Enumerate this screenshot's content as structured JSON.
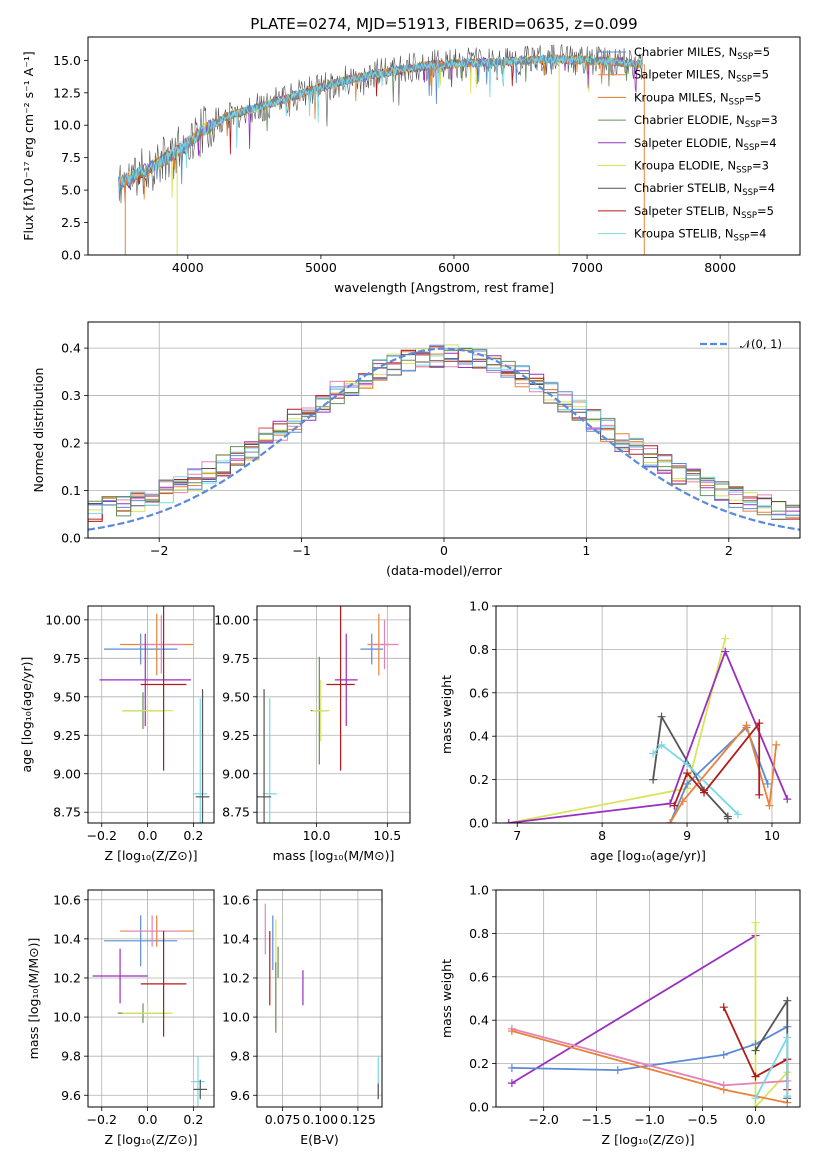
{
  "colors": {
    "chabrier_miles": "#5b8bd6",
    "salpeter_miles": "#e8833a",
    "kroupa_miles": "#d97a1e",
    "chabrier_elodie": "#6a8f5c",
    "salpeter_elodie": "#9a2fbf",
    "kroupa_elodie": "#d8e45a",
    "chabrier_stelib": "#555555",
    "salpeter_stelib": "#b31b1b",
    "kroupa_stelib": "#79d9e6",
    "pink": "#e683b7",
    "gauss": "#5b8bd6"
  },
  "chart_data": [
    {
      "id": "spectrum",
      "type": "line",
      "title": "PLATE=0274, MJD=51913, FIBERID=0635, z=0.099",
      "xlabel": "wavelength [Angstrom, rest frame]",
      "ylabel": "Flux [fλ10⁻¹⁷ erg cm⁻² s⁻¹ A⁻¹]",
      "xlim": [
        3250,
        8600
      ],
      "ylim": [
        0,
        16.8
      ],
      "xticks": [
        "4000",
        "5000",
        "6000",
        "7000",
        "8000"
      ],
      "yticks": [
        "0.0",
        "2.5",
        "5.0",
        "7.5",
        "10.0",
        "12.5",
        "15.0"
      ],
      "xtick_values": [
        4000,
        5000,
        6000,
        7000,
        8000
      ],
      "ytick_values": [
        0,
        2.5,
        5,
        7.5,
        10,
        12.5,
        15
      ],
      "continuum": {
        "x": [
          3500,
          3700,
          3900,
          4100,
          4300,
          4600,
          4900,
          5200,
          5500,
          5800,
          6100,
          6400,
          6700,
          7000,
          7200,
          7400
        ],
        "y": [
          5.6,
          6.6,
          7.8,
          9.5,
          10.7,
          11.6,
          12.6,
          13.5,
          14.1,
          14.6,
          14.8,
          14.9,
          15.1,
          15.0,
          14.9,
          14.7
        ]
      },
      "legend": [
        {
          "label": "Chabrier MILES, N",
          "sub": "SSP",
          "suffix": "=5",
          "color": "chabrier_miles"
        },
        {
          "label": "Salpeter MILES, N",
          "sub": "SSP",
          "suffix": "=5",
          "color": "salpeter_miles"
        },
        {
          "label": "Kroupa MILES, N",
          "sub": "SSP",
          "suffix": "=5",
          "color": "kroupa_miles"
        },
        {
          "label": "Chabrier ELODIE, N",
          "sub": "SSP",
          "suffix": "=3",
          "color": "chabrier_elodie"
        },
        {
          "label": "Salpeter ELODIE, N",
          "sub": "SSP",
          "suffix": "=4",
          "color": "salpeter_elodie"
        },
        {
          "label": "Kroupa ELODIE, N",
          "sub": "SSP",
          "suffix": "=3",
          "color": "kroupa_elodie"
        },
        {
          "label": "Chabrier STELIB, N",
          "sub": "SSP",
          "suffix": "=4",
          "color": "chabrier_stelib"
        },
        {
          "label": "Salpeter STELIB, N",
          "sub": "SSP",
          "suffix": "=5",
          "color": "salpeter_stelib"
        },
        {
          "label": "Kroupa STELIB, N",
          "sub": "SSP",
          "suffix": "=4",
          "color": "kroupa_stelib"
        }
      ]
    },
    {
      "id": "residuals",
      "type": "line",
      "xlabel": "(data-model)/error",
      "ylabel": "Normed distribution",
      "xlim": [
        -2.5,
        2.5
      ],
      "ylim": [
        0,
        0.455
      ],
      "xticks": [
        "−2",
        "−1",
        "0",
        "1",
        "2"
      ],
      "yticks": [
        "0.0",
        "0.1",
        "0.2",
        "0.3",
        "0.4"
      ],
      "xtick_values": [
        -2,
        -1,
        0,
        1,
        2
      ],
      "ytick_values": [
        0,
        0.1,
        0.2,
        0.3,
        0.4
      ],
      "legend_label": "𝒩(0, 1)",
      "gaussian": {
        "mu": 0,
        "sigma": 1
      }
    },
    {
      "id": "age-vs-Z",
      "type": "scatter",
      "xlabel": "Z [log₁₀(Z/Z⊙)]",
      "ylabel": "age  [log₁₀(age/yr)]",
      "xlim": [
        -0.26,
        0.29
      ],
      "ylim": [
        8.68,
        10.09
      ],
      "xticks": [
        "−0.2",
        "0.0",
        "0.2"
      ],
      "yticks": [
        "8.75",
        "9.00",
        "9.25",
        "9.50",
        "9.75",
        "10.00"
      ],
      "xtick_values": [
        -0.2,
        0.0,
        0.2
      ],
      "ytick_values": [
        8.75,
        9.0,
        9.25,
        9.5,
        9.75,
        10.0
      ],
      "points": [
        {
          "x": -0.03,
          "y": 9.81,
          "xerr": 0.16,
          "yerr": 0.1,
          "color": "chabrier_miles"
        },
        {
          "x": 0.04,
          "y": 9.84,
          "xerr": 0.16,
          "yerr": 0.2,
          "color": "salpeter_miles"
        },
        {
          "x": 0.06,
          "y": 9.84,
          "xerr": 0.1,
          "yerr": 0.19,
          "color": "pink"
        },
        {
          "x": -0.01,
          "y": 9.61,
          "xerr": 0.2,
          "yerr": 0.3,
          "color": "salpeter_elodie"
        },
        {
          "x": -0.02,
          "y": 9.41,
          "xerr": 0.09,
          "yerr": 0.12,
          "color": "chabrier_elodie"
        },
        {
          "x": 0.0,
          "y": 9.41,
          "xerr": 0.11,
          "yerr": 0.1,
          "color": "kroupa_elodie"
        },
        {
          "x": 0.07,
          "y": 9.58,
          "xerr": 0.1,
          "yerr": 0.56,
          "color": "salpeter_stelib"
        },
        {
          "x": 0.23,
          "y": 8.87,
          "xerr": 0.03,
          "yerr": 0.62,
          "color": "kroupa_stelib"
        },
        {
          "x": 0.24,
          "y": 8.85,
          "xerr": 0.03,
          "yerr": 0.7,
          "color": "chabrier_stelib"
        }
      ]
    },
    {
      "id": "age-vs-mass",
      "type": "scatter",
      "xlabel": "mass [log₁₀(M/M⊙)]",
      "ylabel": "",
      "xlim": [
        9.58,
        10.66
      ],
      "ylim": [
        8.68,
        10.09
      ],
      "xticks": [
        "10.0",
        "10.5"
      ],
      "yticks": [
        "8.75",
        "9.00",
        "9.25",
        "9.50",
        "9.75",
        "10.00"
      ],
      "xtick_values": [
        10.0,
        10.5
      ],
      "ytick_values": [
        8.75,
        9.0,
        9.25,
        9.5,
        9.75,
        10.0
      ],
      "points": [
        {
          "x": 10.39,
          "y": 9.81,
          "xerr": 0.08,
          "yerr": 0.1,
          "color": "chabrier_miles"
        },
        {
          "x": 10.44,
          "y": 9.84,
          "xerr": 0.08,
          "yerr": 0.2,
          "color": "salpeter_miles"
        },
        {
          "x": 10.48,
          "y": 9.84,
          "xerr": 0.1,
          "yerr": 0.16,
          "color": "pink"
        },
        {
          "x": 10.21,
          "y": 9.61,
          "xerr": 0.08,
          "yerr": 0.3,
          "color": "salpeter_elodie"
        },
        {
          "x": 10.02,
          "y": 9.41,
          "xerr": 0.06,
          "yerr": 0.35,
          "color": "chabrier_elodie"
        },
        {
          "x": 10.03,
          "y": 9.41,
          "xerr": 0.06,
          "yerr": 0.2,
          "color": "kroupa_elodie"
        },
        {
          "x": 10.17,
          "y": 9.58,
          "xerr": 0.1,
          "yerr": 0.56,
          "color": "salpeter_stelib"
        },
        {
          "x": 9.67,
          "y": 8.87,
          "xerr": 0.05,
          "yerr": 0.62,
          "color": "kroupa_stelib"
        },
        {
          "x": 9.63,
          "y": 8.85,
          "xerr": 0.05,
          "yerr": 0.7,
          "color": "chabrier_stelib"
        }
      ]
    },
    {
      "id": "mass-vs-Z",
      "type": "scatter",
      "xlabel": "Z [log₁₀(Z/Z⊙)]",
      "ylabel": "mass [log₁₀(M/M⊙)]",
      "xlim": [
        -0.26,
        0.29
      ],
      "ylim": [
        9.54,
        10.65
      ],
      "xticks": [
        "−0.2",
        "0.0",
        "0.2"
      ],
      "yticks": [
        "9.6",
        "9.8",
        "10.0",
        "10.2",
        "10.4",
        "10.6"
      ],
      "xtick_values": [
        -0.2,
        0.0,
        0.2
      ],
      "ytick_values": [
        9.6,
        9.8,
        10.0,
        10.2,
        10.4,
        10.6
      ],
      "points": [
        {
          "x": -0.03,
          "y": 10.39,
          "xerr": 0.16,
          "yerr": 0.13,
          "color": "chabrier_miles"
        },
        {
          "x": 0.04,
          "y": 10.44,
          "xerr": 0.16,
          "yerr": 0.08,
          "color": "salpeter_miles"
        },
        {
          "x": 0.02,
          "y": 10.44,
          "xerr": 0.12,
          "yerr": 0.08,
          "color": "pink"
        },
        {
          "x": -0.12,
          "y": 10.21,
          "xerr": 0.12,
          "yerr": 0.14,
          "color": "salpeter_elodie"
        },
        {
          "x": -0.02,
          "y": 10.02,
          "xerr": 0.11,
          "yerr": 0.05,
          "color": "chabrier_elodie"
        },
        {
          "x": 0.0,
          "y": 10.02,
          "xerr": 0.11,
          "yerr": 0.05,
          "color": "kroupa_elodie"
        },
        {
          "x": 0.07,
          "y": 10.17,
          "xerr": 0.1,
          "yerr": 0.27,
          "color": "salpeter_stelib"
        },
        {
          "x": 0.22,
          "y": 9.67,
          "xerr": 0.03,
          "yerr": 0.13,
          "color": "kroupa_stelib"
        },
        {
          "x": 0.23,
          "y": 9.63,
          "xerr": 0.03,
          "yerr": 0.05,
          "color": "chabrier_stelib"
        }
      ]
    },
    {
      "id": "mass-vs-ebv",
      "type": "scatter",
      "xlabel": "E(B-V)",
      "ylabel": "",
      "xlim": [
        0.058,
        0.141
      ],
      "ylim": [
        9.54,
        10.65
      ],
      "xticks": [
        "0.075",
        "0.100",
        "0.125"
      ],
      "yticks": [
        "9.6",
        "9.8",
        "10.0",
        "10.2",
        "10.4",
        "10.6"
      ],
      "xtick_values": [
        0.075,
        0.1,
        0.125
      ],
      "ytick_values": [
        9.6,
        9.8,
        10.0,
        10.2,
        10.4,
        10.6
      ],
      "points": [
        {
          "x": 0.0635,
          "y": 10.45,
          "xerr": 0,
          "yerr": 0.13,
          "color": "pink"
        },
        {
          "x": 0.0685,
          "y": 10.38,
          "xerr": 0,
          "yerr": 0.14,
          "color": "chabrier_miles"
        },
        {
          "x": 0.0665,
          "y": 10.25,
          "xerr": 0,
          "yerr": 0.19,
          "color": "salpeter_stelib"
        },
        {
          "x": 0.0705,
          "y": 10.22,
          "xerr": 0,
          "yerr": 0.28,
          "color": "kroupa_elodie"
        },
        {
          "x": 0.0705,
          "y": 10.1,
          "xerr": 0,
          "yerr": 0.18,
          "color": "chabrier_elodie"
        },
        {
          "x": 0.072,
          "y": 10.28,
          "xerr": 0,
          "yerr": 0.08,
          "color": "chabrier_elodie"
        },
        {
          "x": 0.0885,
          "y": 10.15,
          "xerr": 0,
          "yerr": 0.09,
          "color": "salpeter_elodie"
        },
        {
          "x": 0.1385,
          "y": 9.7,
          "xerr": 0,
          "yerr": 0.1,
          "color": "kroupa_stelib"
        },
        {
          "x": 0.1385,
          "y": 9.62,
          "xerr": 0,
          "yerr": 0.04,
          "color": "chabrier_stelib"
        }
      ]
    },
    {
      "id": "weight-vs-age",
      "type": "line",
      "xlabel": "age  [log₁₀(age/yr)]",
      "ylabel": "mass weight",
      "xlim": [
        6.75,
        10.33
      ],
      "ylim": [
        0,
        1
      ],
      "xticks": [
        "7",
        "8",
        "9",
        "10"
      ],
      "yticks": [
        "0.0",
        "0.2",
        "0.4",
        "0.6",
        "0.8",
        "1.0"
      ],
      "xtick_values": [
        7,
        8,
        9,
        10
      ],
      "ytick_values": [
        0,
        0.2,
        0.4,
        0.6,
        0.8,
        1.0
      ],
      "series": [
        {
          "color": "kroupa_elodie",
          "x": [
            6.9,
            9.0,
            9.45,
            9.0
          ],
          "y": [
            0.0,
            0.16,
            0.85,
            0.16
          ]
        },
        {
          "color": "salpeter_elodie",
          "x": [
            6.9,
            8.8,
            9.45,
            10.18
          ],
          "y": [
            0.0,
            0.09,
            0.79,
            0.11
          ]
        },
        {
          "color": "chabrier_stelib",
          "x": [
            8.6,
            8.7,
            9.2,
            9.48,
            9.48
          ],
          "y": [
            0.2,
            0.49,
            0.15,
            0.03,
            0.02
          ]
        },
        {
          "color": "kroupa_stelib",
          "x": [
            8.6,
            8.7,
            9.0,
            9.6
          ],
          "y": [
            0.32,
            0.36,
            0.27,
            0.04
          ]
        },
        {
          "color": "chabrier_miles",
          "x": [
            8.8,
            9.0,
            9.7,
            9.95
          ],
          "y": [
            0.0,
            0.18,
            0.44,
            0.18
          ]
        },
        {
          "color": "salpeter_miles",
          "x": [
            8.8,
            8.95,
            9.7,
            9.97,
            10.05
          ],
          "y": [
            0.0,
            0.1,
            0.45,
            0.08,
            0.36
          ]
        },
        {
          "color": "salpeter_stelib",
          "x": [
            8.85,
            9.0,
            9.2,
            9.85,
            9.85
          ],
          "y": [
            0.08,
            0.23,
            0.14,
            0.46,
            0.13
          ]
        }
      ]
    },
    {
      "id": "weight-vs-Z",
      "type": "line",
      "xlabel": "Z [log₁₀(Z/Z⊙)]",
      "ylabel": "mass weight",
      "xlim": [
        -2.45,
        0.42
      ],
      "ylim": [
        0,
        1
      ],
      "xticks": [
        "−2.0",
        "−1.5",
        "−1.0",
        "−0.5",
        "0.0"
      ],
      "yticks": [
        "0.0",
        "0.2",
        "0.4",
        "0.6",
        "0.8",
        "1.0"
      ],
      "xtick_values": [
        -2.0,
        -1.5,
        -1.0,
        -0.5,
        0.0
      ],
      "ytick_values": [
        0,
        0.2,
        0.4,
        0.6,
        0.8,
        1.0
      ],
      "series": [
        {
          "color": "salpeter_elodie",
          "x": [
            -2.3,
            0.0
          ],
          "y": [
            0.11,
            0.79
          ]
        },
        {
          "color": "kroupa_elodie",
          "x": [
            0.0,
            0.0,
            0.3
          ],
          "y": [
            0.85,
            0.0,
            0.16
          ]
        },
        {
          "color": "chabrier_miles",
          "x": [
            -2.3,
            -1.3,
            -0.3,
            0.0,
            0.3
          ],
          "y": [
            0.18,
            0.17,
            0.24,
            0.29,
            0.37
          ]
        },
        {
          "color": "pink",
          "x": [
            -2.3,
            -0.3,
            0.3
          ],
          "y": [
            0.36,
            0.1,
            0.12
          ]
        },
        {
          "color": "salpeter_miles",
          "x": [
            -2.3,
            -0.3,
            0.3
          ],
          "y": [
            0.35,
            0.08,
            0.02
          ]
        },
        {
          "color": "chabrier_stelib",
          "x": [
            0.0,
            0.3,
            0.3
          ],
          "y": [
            0.26,
            0.49,
            0.04
          ]
        },
        {
          "color": "salpeter_stelib",
          "x": [
            -0.3,
            0.0,
            0.3,
            0.3
          ],
          "y": [
            0.46,
            0.14,
            0.22,
            0.08
          ]
        },
        {
          "color": "kroupa_stelib",
          "x": [
            0.0,
            0.3,
            0.3
          ],
          "y": [
            0.04,
            0.32,
            0.05
          ]
        }
      ]
    }
  ]
}
